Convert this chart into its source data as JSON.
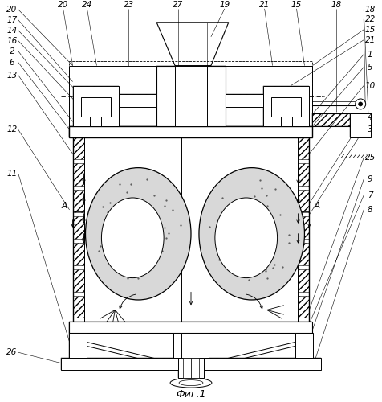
{
  "title": "Фиг.1",
  "bg_color": "#ffffff",
  "figsize": [
    4.76,
    5.0
  ],
  "dpi": 100,
  "labels_left": [
    [
      14,
      490,
      "20"
    ],
    [
      14,
      477,
      "17"
    ],
    [
      14,
      464,
      "14"
    ],
    [
      14,
      451,
      "16"
    ],
    [
      14,
      438,
      "2"
    ],
    [
      14,
      424,
      "6"
    ],
    [
      14,
      408,
      "13"
    ],
    [
      14,
      340,
      "12"
    ],
    [
      14,
      285,
      "11"
    ],
    [
      14,
      62,
      "26"
    ]
  ],
  "labels_right": [
    [
      462,
      490,
      "18"
    ],
    [
      462,
      478,
      "22"
    ],
    [
      462,
      465,
      "15"
    ],
    [
      462,
      452,
      "21"
    ],
    [
      462,
      434,
      "1"
    ],
    [
      462,
      418,
      "5"
    ],
    [
      462,
      395,
      "10"
    ],
    [
      462,
      355,
      "4"
    ],
    [
      462,
      340,
      "3"
    ],
    [
      462,
      305,
      "25"
    ],
    [
      462,
      278,
      "9"
    ],
    [
      462,
      258,
      "7"
    ],
    [
      462,
      240,
      "8"
    ]
  ],
  "labels_top": [
    [
      78,
      496,
      "20"
    ],
    [
      108,
      496,
      "24"
    ],
    [
      160,
      496,
      "23"
    ],
    [
      222,
      496,
      "27"
    ],
    [
      280,
      496,
      "19"
    ],
    [
      330,
      496,
      "21"
    ],
    [
      370,
      496,
      "15"
    ],
    [
      420,
      496,
      "18"
    ]
  ]
}
